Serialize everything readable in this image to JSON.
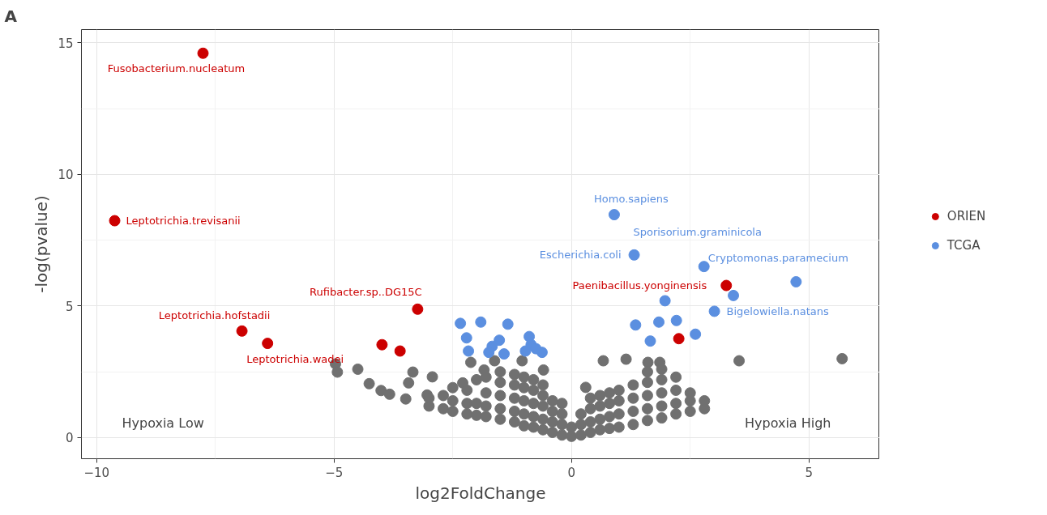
{
  "chart_data": {
    "type": "scatter",
    "xlabel": "log2FoldChange",
    "ylabel": "-log(pvalue)",
    "xlim": [
      -10.32,
      6.49
    ],
    "ylim": [
      -0.8,
      15.5
    ],
    "xticks": [
      -10,
      -5,
      0,
      5
    ],
    "yticks": [
      0,
      5,
      10,
      15
    ],
    "grid": true,
    "legend": "right",
    "marker": "circle",
    "series": [
      {
        "color": "#707070",
        "x": [
          -4.97,
          -4.93,
          -4.5,
          -4.26,
          -4.01,
          -3.83,
          -3.49,
          -3.43,
          -3.34,
          -2.93,
          -3.04,
          -2.12,
          -1.84,
          -1.62,
          -1.04,
          -0.59,
          -2.29,
          0.3,
          0.67,
          1.15,
          1.61,
          1.86,
          3.53,
          5.7,
          -3.0,
          -3.0,
          -2.7,
          -2.7,
          -2.5,
          -2.5,
          -2.5,
          -2.2,
          -2.2,
          -2.2,
          -2.0,
          -2.0,
          -2.0,
          -1.8,
          -1.8,
          -1.8,
          -1.8,
          -1.5,
          -1.5,
          -1.5,
          -1.5,
          -1.5,
          -1.2,
          -1.2,
          -1.2,
          -1.2,
          -1.2,
          -1.0,
          -1.0,
          -1.0,
          -1.0,
          -1.0,
          -0.8,
          -0.8,
          -0.8,
          -0.8,
          -0.8,
          -0.6,
          -0.6,
          -0.6,
          -0.6,
          -0.6,
          -0.4,
          -0.4,
          -0.4,
          -0.4,
          -0.2,
          -0.2,
          -0.2,
          -0.2,
          0.0,
          0.0,
          0.2,
          0.2,
          0.2,
          0.4,
          0.4,
          0.4,
          0.4,
          0.6,
          0.6,
          0.6,
          0.6,
          0.8,
          0.8,
          0.8,
          0.8,
          1.0,
          1.0,
          1.0,
          1.0,
          1.3,
          1.3,
          1.3,
          1.3,
          1.6,
          1.6,
          1.6,
          1.6,
          1.6,
          1.9,
          1.9,
          1.9,
          1.9,
          1.9,
          2.2,
          2.2,
          2.2,
          2.2,
          2.5,
          2.5,
          2.5,
          2.8,
          2.8
        ],
        "values": [
          2.8,
          2.49,
          2.6,
          2.05,
          1.79,
          1.65,
          1.47,
          2.08,
          2.49,
          2.31,
          1.62,
          2.86,
          2.57,
          2.92,
          2.92,
          2.57,
          2.08,
          1.91,
          2.92,
          2.98,
          2.86,
          2.86,
          2.92,
          3.0,
          1.2,
          1.5,
          1.1,
          1.6,
          1.0,
          1.4,
          1.9,
          0.9,
          1.3,
          1.8,
          0.85,
          1.3,
          2.2,
          0.8,
          1.2,
          1.7,
          2.3,
          0.7,
          1.1,
          1.6,
          2.1,
          2.5,
          0.6,
          1.0,
          1.5,
          2.0,
          2.4,
          0.45,
          0.9,
          1.4,
          1.9,
          2.3,
          0.4,
          0.8,
          1.3,
          1.8,
          2.2,
          0.3,
          0.7,
          1.2,
          1.6,
          2.0,
          0.2,
          0.6,
          1.0,
          1.4,
          0.1,
          0.5,
          0.9,
          1.3,
          0.05,
          0.4,
          0.1,
          0.5,
          0.9,
          0.2,
          0.6,
          1.1,
          1.5,
          0.3,
          0.7,
          1.2,
          1.6,
          0.35,
          0.8,
          1.3,
          1.7,
          0.4,
          0.9,
          1.4,
          1.8,
          0.5,
          1.0,
          1.5,
          2.0,
          0.65,
          1.1,
          1.6,
          2.1,
          2.5,
          0.75,
          1.2,
          1.7,
          2.2,
          2.6,
          0.9,
          1.3,
          1.8,
          2.3,
          1.0,
          1.4,
          1.7,
          1.1,
          1.4
        ]
      },
      {
        "name": "ORIEN",
        "color": "#cc0000",
        "x": [
          -7.76,
          -9.62,
          -6.94,
          -6.4,
          -3.24,
          -3.99,
          -3.61,
          3.26,
          2.26
        ],
        "values": [
          14.6,
          8.24,
          4.05,
          3.58,
          4.88,
          3.53,
          3.29,
          5.78,
          3.76
        ]
      },
      {
        "name": "TCGA",
        "color": "#5b8fe0",
        "x": [
          -2.34,
          -1.91,
          -1.34,
          -2.21,
          -2.17,
          -1.52,
          -1.67,
          -1.74,
          -1.42,
          -0.89,
          -0.85,
          -0.97,
          -0.62,
          -0.75,
          0.9,
          1.32,
          2.79,
          4.73,
          3.41,
          1.97,
          3.01,
          1.35,
          1.84,
          2.21,
          1.66,
          2.61
        ],
        "values": [
          4.34,
          4.39,
          4.31,
          3.79,
          3.29,
          3.7,
          3.47,
          3.24,
          3.18,
          3.84,
          3.53,
          3.29,
          3.24,
          3.38,
          8.47,
          6.94,
          6.5,
          5.92,
          5.4,
          5.2,
          4.8,
          4.28,
          4.39,
          4.45,
          3.67,
          3.93
        ]
      }
    ],
    "annotations": [
      "A",
      "Hypoxia Low",
      "Hypoxia High",
      {
        "text": "Fusobacterium.nucleatum",
        "x": -7.76,
        "y": 14.6
      },
      {
        "text": "Leptotrichia.trevisanii",
        "x": -9.62,
        "y": 8.24
      },
      {
        "text": "Leptotrichia.hofstadii",
        "x": -6.94,
        "y": 4.05
      },
      {
        "text": "Leptotrichia.wadei",
        "x": -6.4,
        "y": 3.58
      },
      {
        "text": "Rufibacter.sp..DG15C",
        "x": -3.24,
        "y": 4.88
      },
      {
        "text": "Paenibacillus.yonginensis",
        "x": 3.26,
        "y": 5.78
      },
      {
        "text": "Homo.sapiens",
        "x": 0.9,
        "y": 8.47
      },
      {
        "text": "Escherichia.coli",
        "x": 1.32,
        "y": 6.94
      },
      {
        "text": "Sporisorium.graminicola",
        "x": 2.79,
        "y": 6.5
      },
      {
        "text": "Cryptomonas.paramecium",
        "x": 4.73,
        "y": 5.92
      },
      {
        "text": "Bigelowiella.natans",
        "x": 3.01,
        "y": 4.8
      }
    ]
  }
}
